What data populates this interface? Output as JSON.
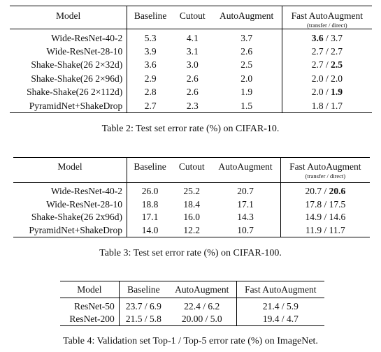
{
  "table2": {
    "headers": [
      "Model",
      "Baseline",
      "Cutout",
      "AutoAugment",
      "Fast AutoAugment"
    ],
    "sub": "(transfer / direct)",
    "rows": [
      [
        "Wide-ResNet-40-2",
        "5.3",
        "4.1",
        "3.7",
        "3.6",
        "3.7"
      ],
      [
        "Wide-ResNet-28-10",
        "3.9",
        "3.1",
        "2.6",
        "2.7",
        "2.7"
      ],
      [
        "Shake-Shake(26 2×32d)",
        "3.6",
        "3.0",
        "2.5",
        "2.7",
        "2.5"
      ],
      [
        "Shake-Shake(26 2×96d)",
        "2.9",
        "2.6",
        "2.0",
        "2.0",
        "2.0"
      ],
      [
        "Shake-Shake(26 2×112d)",
        "2.8",
        "2.6",
        "1.9",
        "2.0",
        "1.9"
      ],
      [
        "PyramidNet+ShakeDrop",
        "2.7",
        "2.3",
        "1.5",
        "1.8",
        "1.7"
      ]
    ],
    "caption": "Table 2: Test set error rate (%) on CIFAR-10."
  },
  "table3": {
    "headers": [
      "Model",
      "Baseline",
      "Cutout",
      "AutoAugment",
      "Fast AutoAugment"
    ],
    "sub": "(transfer / direct)",
    "rows": [
      [
        "Wide-ResNet-40-2",
        "26.0",
        "25.2",
        "20.7",
        "20.7",
        "20.6"
      ],
      [
        "Wide-ResNet-28-10",
        "18.8",
        "18.4",
        "17.1",
        "17.8",
        "17.5"
      ],
      [
        "Shake-Shake(26 2x96d)",
        "17.1",
        "16.0",
        "14.3",
        "14.9",
        "14.6"
      ],
      [
        "PyramidNet+ShakeDrop",
        "14.0",
        "12.2",
        "10.7",
        "11.9",
        "11.7"
      ]
    ],
    "caption": "Table 3: Test set error rate (%) on CIFAR-100."
  },
  "table4": {
    "headers": [
      "Model",
      "Baseline",
      "AutoAugment",
      "Fast AutoAugment"
    ],
    "rows": [
      [
        "ResNet-50",
        "23.7 / 6.9",
        "22.4 / 6.2",
        "21.4 / 5.9"
      ],
      [
        "ResNet-200",
        "21.5 / 5.8",
        "20.00 / 5.0",
        "19.4 / 4.7"
      ]
    ],
    "caption": "Table 4: Validation set Top-1 / Top-5 error rate (%) on ImageNet."
  }
}
